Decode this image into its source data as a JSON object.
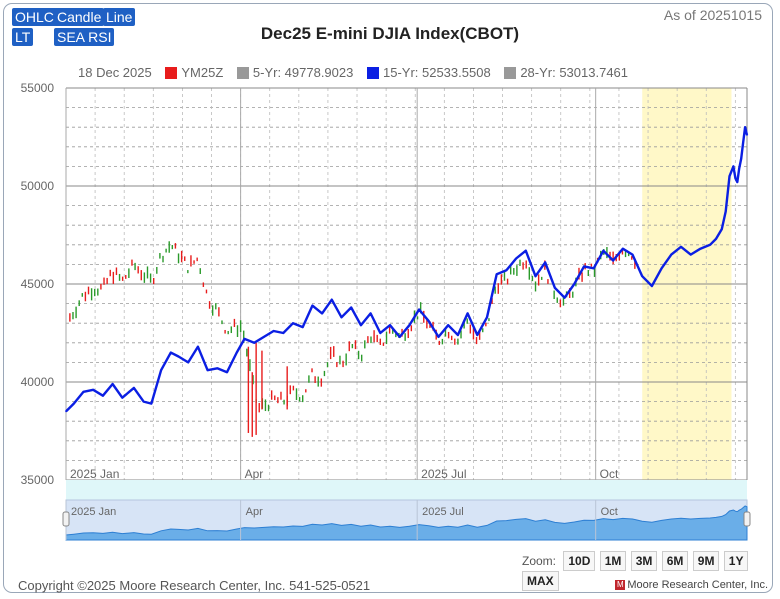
{
  "toolbar": {
    "row1": [
      "OHLC",
      "Candle",
      "Line"
    ],
    "row2": [
      "LT",
      "SEA RSI"
    ]
  },
  "as_of": "As of 20251015",
  "legend": {
    "date": "18 Dec 2025",
    "items": [
      {
        "label": "YM25Z",
        "color": "#e81c1c"
      },
      {
        "label": "5-Yr: 49778.9023",
        "color": "#999999"
      },
      {
        "label": "15-Yr: 52533.5508",
        "color": "#0b1fe3"
      },
      {
        "label": "28-Yr: 53013.7461",
        "color": "#999999"
      }
    ]
  },
  "zoom": {
    "label": "Zoom:",
    "buttons": [
      "10D",
      "1M",
      "3M",
      "6M",
      "9M",
      "1Y",
      "MAX"
    ]
  },
  "footer": {
    "copyright": "Copyright ©2025 Moore Research Center, Inc. 541-525-0521",
    "brand": "Moore Research Center, Inc."
  },
  "chart_data": {
    "type": "line",
    "title": "Dec25 E-mini DJIA Index(CBOT)",
    "y_ticks": [
      55000,
      50000,
      45000,
      40000,
      35000
    ],
    "ylim": [
      35000,
      55000
    ],
    "x_range": [
      "2025-01-01",
      "2025-12-18"
    ],
    "x_ticks": [
      {
        "label": "2025 Jan",
        "date": "2025-01-01"
      },
      {
        "label": "Apr",
        "date": "2025-04-01"
      },
      {
        "label": "2025 Jul",
        "date": "2025-07-01"
      },
      {
        "label": "Oct",
        "date": "2025-10-01"
      }
    ],
    "highlight": {
      "from": "2025-10-25",
      "to": "2025-12-10",
      "color": "#fff8c8"
    },
    "grid": true,
    "series": [
      {
        "name": "15-Yr",
        "kind": "line",
        "color": "#0b1fe3",
        "points": [
          [
            "2025-01-01",
            38500
          ],
          [
            "2025-01-05",
            38900
          ],
          [
            "2025-01-10",
            39500
          ],
          [
            "2025-01-15",
            39600
          ],
          [
            "2025-01-20",
            39300
          ],
          [
            "2025-01-25",
            39900
          ],
          [
            "2025-01-30",
            39200
          ],
          [
            "2025-02-05",
            39700
          ],
          [
            "2025-02-10",
            39000
          ],
          [
            "2025-02-14",
            38900
          ],
          [
            "2025-02-19",
            40600
          ],
          [
            "2025-02-24",
            41500
          ],
          [
            "2025-02-28",
            41300
          ],
          [
            "2025-03-05",
            41000
          ],
          [
            "2025-03-10",
            41800
          ],
          [
            "2025-03-15",
            40600
          ],
          [
            "2025-03-20",
            40700
          ],
          [
            "2025-03-25",
            40500
          ],
          [
            "2025-03-30",
            41500
          ],
          [
            "2025-04-03",
            42200
          ],
          [
            "2025-04-08",
            42000
          ],
          [
            "2025-04-13",
            42300
          ],
          [
            "2025-04-18",
            42600
          ],
          [
            "2025-04-23",
            42500
          ],
          [
            "2025-04-28",
            43000
          ],
          [
            "2025-05-03",
            42800
          ],
          [
            "2025-05-08",
            43900
          ],
          [
            "2025-05-13",
            43500
          ],
          [
            "2025-05-18",
            44200
          ],
          [
            "2025-05-23",
            43300
          ],
          [
            "2025-05-28",
            43800
          ],
          [
            "2025-06-02",
            42900
          ],
          [
            "2025-06-07",
            43500
          ],
          [
            "2025-06-12",
            42500
          ],
          [
            "2025-06-17",
            42900
          ],
          [
            "2025-06-22",
            42300
          ],
          [
            "2025-06-27",
            42900
          ],
          [
            "2025-07-02",
            43700
          ],
          [
            "2025-07-07",
            43100
          ],
          [
            "2025-07-12",
            42300
          ],
          [
            "2025-07-17",
            42900
          ],
          [
            "2025-07-22",
            42400
          ],
          [
            "2025-07-27",
            43500
          ],
          [
            "2025-08-01",
            42400
          ],
          [
            "2025-08-06",
            43300
          ],
          [
            "2025-08-11",
            45500
          ],
          [
            "2025-08-16",
            45700
          ],
          [
            "2025-08-21",
            46300
          ],
          [
            "2025-08-26",
            46700
          ],
          [
            "2025-08-31",
            45400
          ],
          [
            "2025-09-05",
            46100
          ],
          [
            "2025-09-10",
            44800
          ],
          [
            "2025-09-15",
            44300
          ],
          [
            "2025-09-20",
            45000
          ],
          [
            "2025-09-25",
            45900
          ],
          [
            "2025-09-30",
            45800
          ],
          [
            "2025-10-05",
            46700
          ],
          [
            "2025-10-10",
            46200
          ],
          [
            "2025-10-15",
            46800
          ],
          [
            "2025-10-20",
            46500
          ],
          [
            "2025-10-25",
            45400
          ],
          [
            "2025-10-30",
            44900
          ],
          [
            "2025-11-04",
            45800
          ],
          [
            "2025-11-09",
            46500
          ],
          [
            "2025-11-14",
            46900
          ],
          [
            "2025-11-19",
            46500
          ],
          [
            "2025-11-24",
            46800
          ],
          [
            "2025-11-29",
            47000
          ],
          [
            "2025-12-02",
            47300
          ],
          [
            "2025-12-05",
            47800
          ],
          [
            "2025-12-07",
            48700
          ],
          [
            "2025-12-09",
            50500
          ],
          [
            "2025-12-11",
            51000
          ],
          [
            "2025-12-12",
            50400
          ],
          [
            "2025-12-13",
            50200
          ],
          [
            "2025-12-14",
            50900
          ],
          [
            "2025-12-15",
            51400
          ],
          [
            "2025-12-16",
            52200
          ],
          [
            "2025-12-17",
            53000
          ],
          [
            "2025-12-18",
            52600
          ]
        ]
      },
      {
        "name": "YM25Z",
        "kind": "ohlc",
        "color_up": "#2a9a2a",
        "color_down": "#e81c1c",
        "note": "daily price bars"
      }
    ]
  }
}
